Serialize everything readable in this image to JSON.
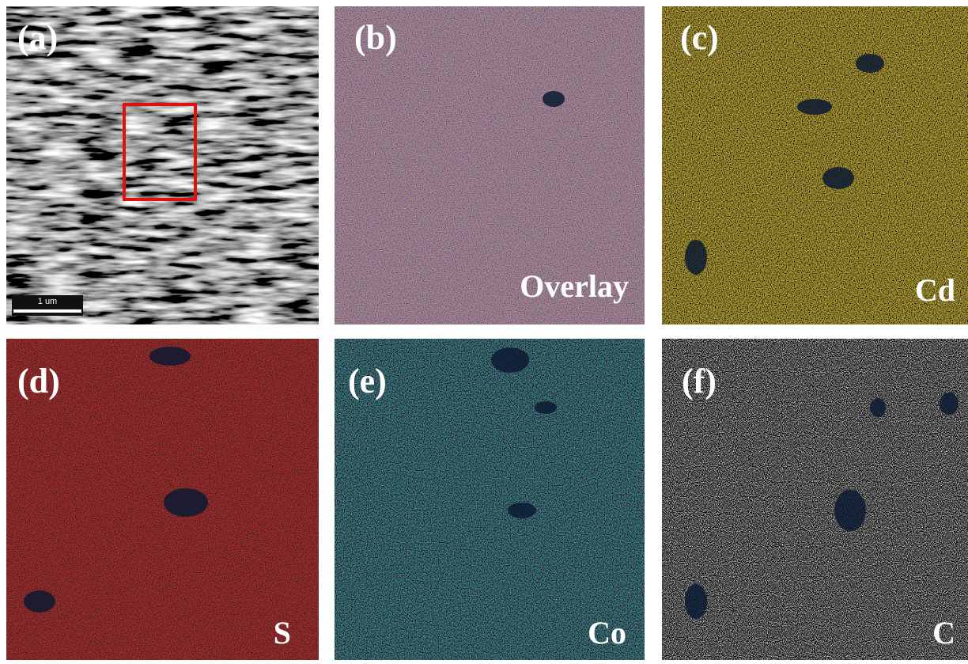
{
  "panels": [
    {
      "label": "(a)",
      "scale_bar": "1 um"
    },
    {
      "label": "(b)",
      "element": "Overlay"
    },
    {
      "label": "(c)",
      "element": "Cd"
    },
    {
      "label": "(d)",
      "element": "S"
    },
    {
      "label": "(e)",
      "element": "Co"
    },
    {
      "label": "(f)",
      "element": "C"
    }
  ]
}
